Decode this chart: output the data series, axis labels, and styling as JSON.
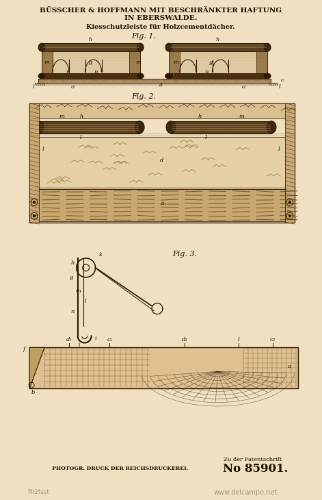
{
  "bg_color": "#f0dfc0",
  "title_line1": "BÜSSCHER & HOFFMANN MIT BESCHRÄNKTER HAFTUNG",
  "title_line2": "IN EBERSWALDE.",
  "subtitle": "Kiesschutzleiste für Holzcementdächer.",
  "fig1_label": "Fig. 1.",
  "fig2_label": "Fig. 2.",
  "fig3_label": "Fig. 3.",
  "footer_left": "PHOTOGR. DRUCK DER REICHSDRUCKEREI.",
  "footer_patent": "Zu der Patentschrift",
  "footer_number": "No 85901.",
  "watermark": "www.delcampe.net",
  "credit": "Pit2fast",
  "dark_color": "#1a0f00",
  "line_color": "#2a1800",
  "mid_color": "#8a6830",
  "wood_color": "#c8a870",
  "paper_color": "#e8cfa0"
}
